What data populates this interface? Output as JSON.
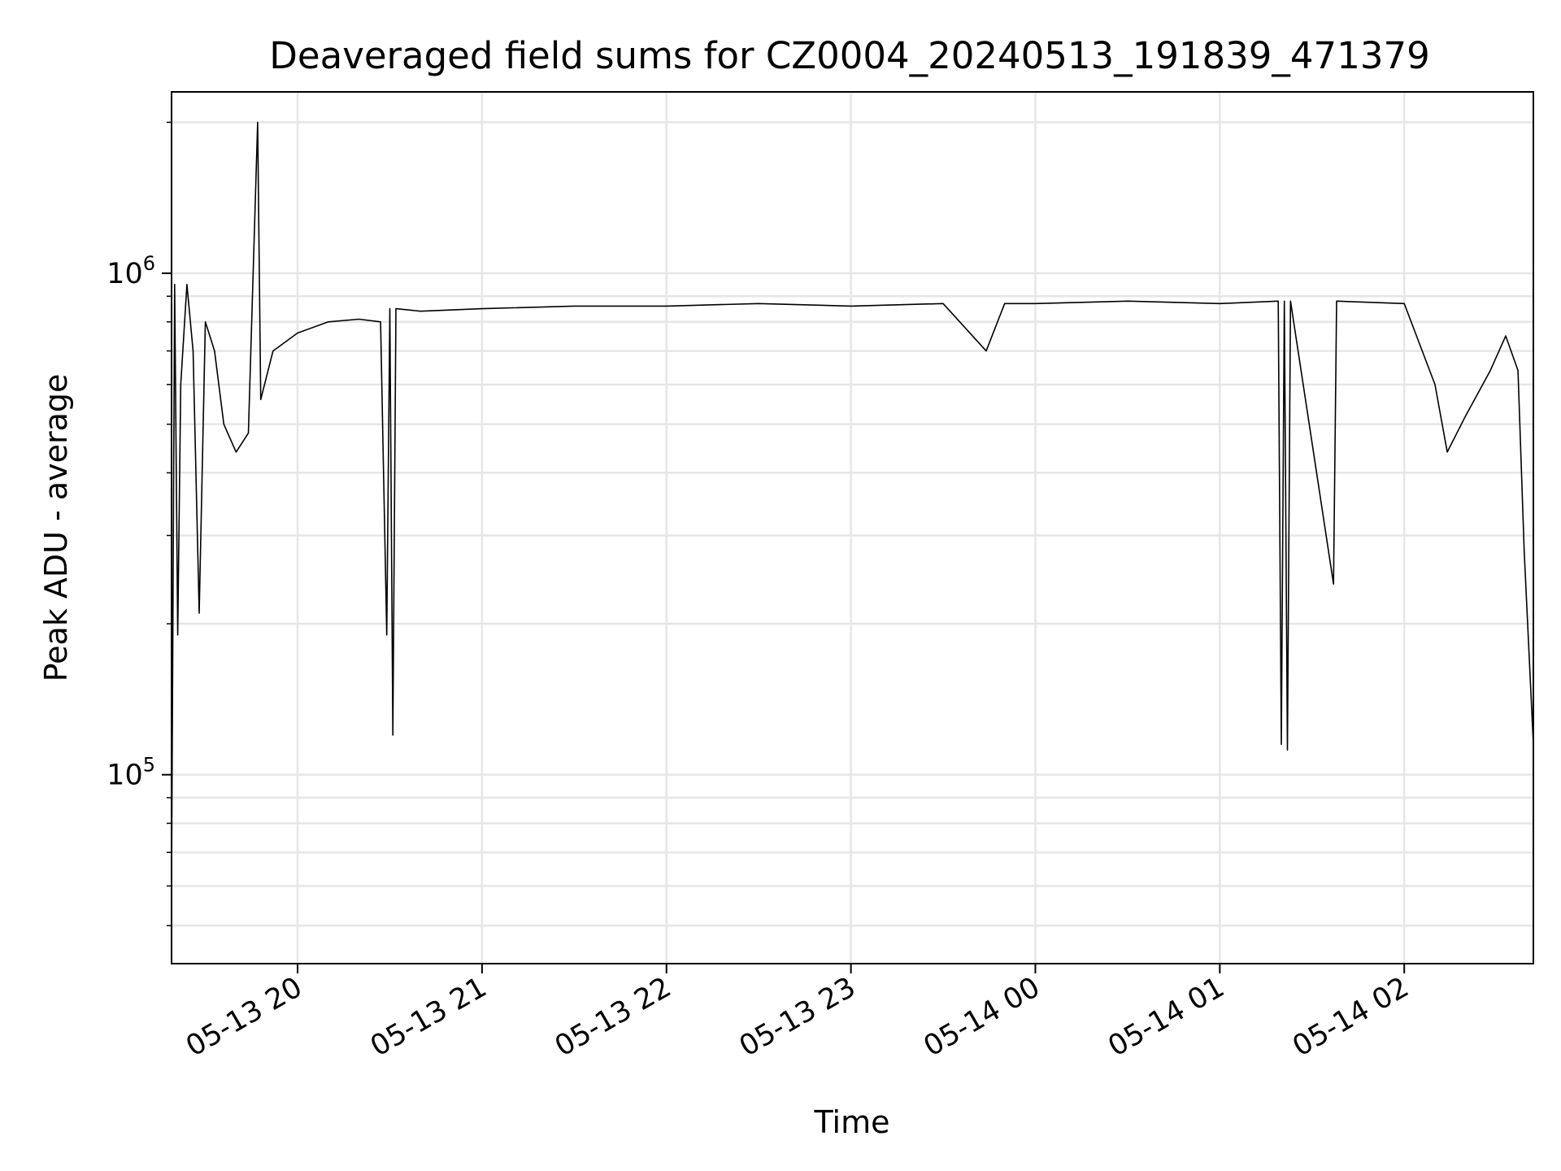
{
  "chart_data": {
    "type": "line",
    "title": "Deaveraged field sums for CZ0004_20240513_191839_471379",
    "xlabel": "Time",
    "ylabel": "Peak ADU - average",
    "yscale": "log",
    "xlim": [
      "2024-05-13 19:19",
      "2024-05-14 02:42"
    ],
    "ylim": [
      42000,
      2300000
    ],
    "x_ticks": [
      "05-13 20",
      "05-13 21",
      "05-13 22",
      "05-13 23",
      "05-14 00",
      "05-14 01",
      "05-14 02"
    ],
    "y_ticks": [
      {
        "base": "10",
        "exp": "5",
        "value": 100000
      },
      {
        "base": "10",
        "exp": "6",
        "value": 1000000
      }
    ],
    "grid": true,
    "line_color": "#000000",
    "series": [
      {
        "points": [
          [
            "2024-05-13 19:19",
            60000
          ],
          [
            "2024-05-13 19:20",
            950000
          ],
          [
            "2024-05-13 19:21",
            190000
          ],
          [
            "2024-05-13 19:22",
            600000
          ],
          [
            "2024-05-13 19:24",
            950000
          ],
          [
            "2024-05-13 19:26",
            700000
          ],
          [
            "2024-05-13 19:28",
            210000
          ],
          [
            "2024-05-13 19:30",
            800000
          ],
          [
            "2024-05-13 19:33",
            700000
          ],
          [
            "2024-05-13 19:36",
            500000
          ],
          [
            "2024-05-13 19:40",
            440000
          ],
          [
            "2024-05-13 19:44",
            480000
          ],
          [
            "2024-05-13 19:47",
            2000000
          ],
          [
            "2024-05-13 19:48",
            560000
          ],
          [
            "2024-05-13 19:52",
            700000
          ],
          [
            "2024-05-13 20:00",
            760000
          ],
          [
            "2024-05-13 20:10",
            800000
          ],
          [
            "2024-05-13 20:20",
            810000
          ],
          [
            "2024-05-13 20:27",
            800000
          ],
          [
            "2024-05-13 20:29",
            190000
          ],
          [
            "2024-05-13 20:30",
            850000
          ],
          [
            "2024-05-13 20:31",
            120000
          ],
          [
            "2024-05-13 20:32",
            850000
          ],
          [
            "2024-05-13 20:40",
            840000
          ],
          [
            "2024-05-13 21:00",
            850000
          ],
          [
            "2024-05-13 21:30",
            860000
          ],
          [
            "2024-05-13 22:00",
            860000
          ],
          [
            "2024-05-13 22:30",
            870000
          ],
          [
            "2024-05-13 23:00",
            860000
          ],
          [
            "2024-05-13 23:30",
            870000
          ],
          [
            "2024-05-13 23:44",
            700000
          ],
          [
            "2024-05-13 23:50",
            870000
          ],
          [
            "2024-05-14 00:00",
            870000
          ],
          [
            "2024-05-14 00:30",
            880000
          ],
          [
            "2024-05-14 01:00",
            870000
          ],
          [
            "2024-05-14 01:19",
            880000
          ],
          [
            "2024-05-14 01:20",
            115000
          ],
          [
            "2024-05-14 01:21",
            880000
          ],
          [
            "2024-05-14 01:22",
            112000
          ],
          [
            "2024-05-14 01:23",
            880000
          ],
          [
            "2024-05-14 01:37",
            240000
          ],
          [
            "2024-05-14 01:38",
            880000
          ],
          [
            "2024-05-14 02:00",
            870000
          ],
          [
            "2024-05-14 02:10",
            600000
          ],
          [
            "2024-05-14 02:14",
            440000
          ],
          [
            "2024-05-14 02:20",
            520000
          ],
          [
            "2024-05-14 02:28",
            640000
          ],
          [
            "2024-05-14 02:33",
            750000
          ],
          [
            "2024-05-14 02:37",
            640000
          ],
          [
            "2024-05-14 02:39",
            280000
          ],
          [
            "2024-05-14 02:42",
            115000
          ]
        ]
      }
    ]
  }
}
